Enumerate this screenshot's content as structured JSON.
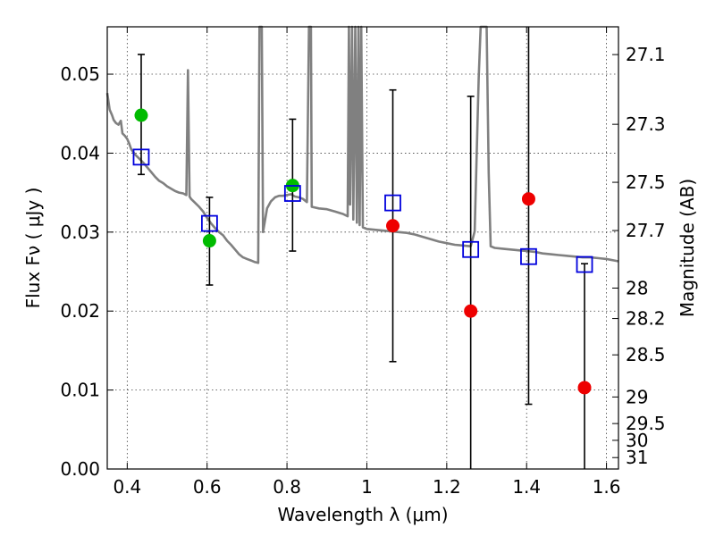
{
  "chart_data": {
    "type": "scatter",
    "xlabel": "Wavelength  λ (μm)",
    "ylabel": "Flux  Fν  ( μJy )",
    "y2label": "Magnitude (AB)",
    "xlim": [
      0.35,
      1.63
    ],
    "ylim": [
      0.0,
      0.056
    ],
    "grid": true,
    "x_ticks": [
      {
        "value": 0.4,
        "label": "0.4"
      },
      {
        "value": 0.6,
        "label": "0.6"
      },
      {
        "value": 0.8,
        "label": "0.8"
      },
      {
        "value": 1.0,
        "label": "1"
      },
      {
        "value": 1.2,
        "label": "1.2"
      },
      {
        "value": 1.4,
        "label": "1.4"
      },
      {
        "value": 1.6,
        "label": "1.6"
      }
    ],
    "y_ticks": [
      {
        "value": 0.0,
        "label": "0.00"
      },
      {
        "value": 0.01,
        "label": "0.01"
      },
      {
        "value": 0.02,
        "label": "0.02"
      },
      {
        "value": 0.03,
        "label": "0.03"
      },
      {
        "value": 0.04,
        "label": "0.04"
      },
      {
        "value": 0.05,
        "label": "0.05"
      }
    ],
    "y2_ticks": [
      {
        "mag": 27.1,
        "label": "27.1"
      },
      {
        "mag": 27.3,
        "label": "27.3"
      },
      {
        "mag": 27.5,
        "label": "27.5"
      },
      {
        "mag": 27.7,
        "label": "27.7"
      },
      {
        "mag": 28.0,
        "label": "28"
      },
      {
        "mag": 28.2,
        "label": "28.2"
      },
      {
        "mag": 28.5,
        "label": "28.5"
      },
      {
        "mag": 29.0,
        "label": "29"
      },
      {
        "mag": 29.5,
        "label": "29.5"
      },
      {
        "mag": 30.0,
        "label": "30"
      },
      {
        "mag": 31.0,
        "label": "31"
      }
    ],
    "model_spectrum": {
      "color": "#808080",
      "points": [
        [
          0.35,
          0.0476
        ],
        [
          0.356,
          0.0455
        ],
        [
          0.362,
          0.0448
        ],
        [
          0.366,
          0.0442
        ],
        [
          0.372,
          0.0438
        ],
        [
          0.378,
          0.0436
        ],
        [
          0.384,
          0.0441
        ],
        [
          0.388,
          0.0425
        ],
        [
          0.394,
          0.0422
        ],
        [
          0.4,
          0.0418
        ],
        [
          0.405,
          0.0412
        ],
        [
          0.41,
          0.0405
        ],
        [
          0.42,
          0.0398
        ],
        [
          0.43,
          0.0393
        ],
        [
          0.44,
          0.0388
        ],
        [
          0.45,
          0.0382
        ],
        [
          0.46,
          0.0376
        ],
        [
          0.47,
          0.037
        ],
        [
          0.48,
          0.0365
        ],
        [
          0.49,
          0.0362
        ],
        [
          0.5,
          0.0358
        ],
        [
          0.51,
          0.0355
        ],
        [
          0.52,
          0.0352
        ],
        [
          0.53,
          0.035
        ],
        [
          0.54,
          0.0349
        ],
        [
          0.548,
          0.0347
        ],
        [
          0.552,
          0.0505
        ],
        [
          0.556,
          0.0345
        ],
        [
          0.56,
          0.0342
        ],
        [
          0.57,
          0.0337
        ],
        [
          0.58,
          0.0332
        ],
        [
          0.59,
          0.0326
        ],
        [
          0.6,
          0.0318
        ],
        [
          0.61,
          0.0311
        ],
        [
          0.62,
          0.0305
        ],
        [
          0.63,
          0.03
        ],
        [
          0.64,
          0.0296
        ],
        [
          0.65,
          0.0289
        ],
        [
          0.66,
          0.0284
        ],
        [
          0.67,
          0.0278
        ],
        [
          0.68,
          0.0272
        ],
        [
          0.69,
          0.0268
        ],
        [
          0.7,
          0.0266
        ],
        [
          0.71,
          0.0264
        ],
        [
          0.72,
          0.0262
        ],
        [
          0.728,
          0.0261
        ],
        [
          0.731,
          0.056
        ],
        [
          0.737,
          0.056
        ],
        [
          0.74,
          0.03
        ],
        [
          0.75,
          0.033
        ],
        [
          0.76,
          0.0339
        ],
        [
          0.77,
          0.0344
        ],
        [
          0.78,
          0.0346
        ],
        [
          0.79,
          0.0346
        ],
        [
          0.8,
          0.0347
        ],
        [
          0.81,
          0.0348
        ],
        [
          0.82,
          0.0345
        ],
        [
          0.83,
          0.0344
        ],
        [
          0.84,
          0.0342
        ],
        [
          0.85,
          0.0338
        ],
        [
          0.855,
          0.056
        ],
        [
          0.86,
          0.056
        ],
        [
          0.862,
          0.0332
        ],
        [
          0.88,
          0.033
        ],
        [
          0.9,
          0.0329
        ],
        [
          0.92,
          0.0326
        ],
        [
          0.94,
          0.0323
        ],
        [
          0.952,
          0.032
        ],
        [
          0.955,
          0.056
        ],
        [
          0.958,
          0.0335
        ],
        [
          0.963,
          0.056
        ],
        [
          0.966,
          0.0316
        ],
        [
          0.971,
          0.056
        ],
        [
          0.975,
          0.0312
        ],
        [
          0.979,
          0.056
        ],
        [
          0.982,
          0.0309
        ],
        [
          0.986,
          0.056
        ],
        [
          0.99,
          0.0306
        ],
        [
          1.0,
          0.0304
        ],
        [
          1.02,
          0.0303
        ],
        [
          1.04,
          0.0302
        ],
        [
          1.06,
          0.0301
        ],
        [
          1.08,
          0.03
        ],
        [
          1.1,
          0.0299
        ],
        [
          1.12,
          0.0297
        ],
        [
          1.14,
          0.0294
        ],
        [
          1.16,
          0.0291
        ],
        [
          1.18,
          0.0288
        ],
        [
          1.2,
          0.0286
        ],
        [
          1.22,
          0.0284
        ],
        [
          1.24,
          0.0283
        ],
        [
          1.26,
          0.0282
        ],
        [
          1.27,
          0.0301
        ],
        [
          1.28,
          0.0495
        ],
        [
          1.285,
          0.056
        ],
        [
          1.3,
          0.056
        ],
        [
          1.305,
          0.0375
        ],
        [
          1.31,
          0.0282
        ],
        [
          1.32,
          0.028
        ],
        [
          1.34,
          0.0279
        ],
        [
          1.36,
          0.0278
        ],
        [
          1.38,
          0.0277
        ],
        [
          1.4,
          0.0276
        ],
        [
          1.42,
          0.0275
        ],
        [
          1.44,
          0.0273
        ],
        [
          1.46,
          0.0272
        ],
        [
          1.48,
          0.0271
        ],
        [
          1.5,
          0.027
        ],
        [
          1.52,
          0.0269
        ],
        [
          1.54,
          0.0268
        ],
        [
          1.56,
          0.0268
        ],
        [
          1.58,
          0.0267
        ],
        [
          1.6,
          0.0266
        ],
        [
          1.61,
          0.0265
        ],
        [
          1.62,
          0.0264
        ],
        [
          1.63,
          0.0263
        ]
      ]
    },
    "observed": [
      {
        "x": 0.435,
        "y": 0.0448,
        "color": "#00bb00"
      },
      {
        "x": 0.606,
        "y": 0.0289,
        "color": "#00bb00"
      },
      {
        "x": 0.814,
        "y": 0.0359,
        "color": "#00bb00"
      },
      {
        "x": 1.065,
        "y": 0.0308,
        "color": "#ee0000"
      },
      {
        "x": 1.26,
        "y": 0.02,
        "color": "#ee0000"
      },
      {
        "x": 1.405,
        "y": 0.0342,
        "color": "#ee0000"
      },
      {
        "x": 1.545,
        "y": 0.0103,
        "color": "#ee0000"
      }
    ],
    "errorbars": [
      {
        "x": 0.435,
        "lo": 0.0373,
        "hi": 0.0525
      },
      {
        "x": 0.606,
        "lo": 0.0233,
        "hi": 0.0344
      },
      {
        "x": 0.814,
        "lo": 0.0276,
        "hi": 0.0443
      },
      {
        "x": 1.065,
        "lo": 0.0136,
        "hi": 0.048
      },
      {
        "x": 1.26,
        "lo": 0.0,
        "hi": 0.0472
      },
      {
        "x": 1.405,
        "lo": 0.0082,
        "hi": 0.056
      },
      {
        "x": 1.545,
        "lo": 0.0,
        "hi": 0.026
      }
    ],
    "model_photometry": {
      "color": "#0000dd",
      "points": [
        {
          "x": 0.435,
          "y": 0.0395
        },
        {
          "x": 0.606,
          "y": 0.0311
        },
        {
          "x": 0.814,
          "y": 0.0349
        },
        {
          "x": 1.065,
          "y": 0.0337
        },
        {
          "x": 1.26,
          "y": 0.0278
        },
        {
          "x": 1.405,
          "y": 0.0269
        },
        {
          "x": 1.545,
          "y": 0.0259
        }
      ]
    }
  }
}
